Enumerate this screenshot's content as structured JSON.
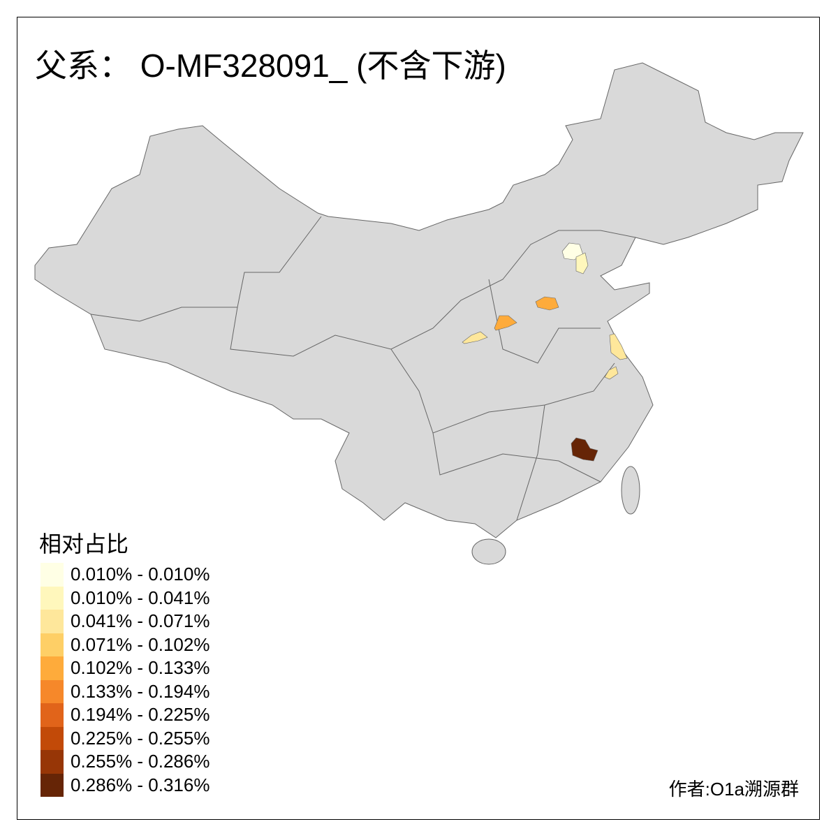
{
  "title": "父系： O-MF328091_ (不含下游)",
  "legend": {
    "title": "相对占比",
    "items": [
      {
        "label": "0.010% - 0.010%",
        "color": "#FFFFE5"
      },
      {
        "label": "0.010% - 0.041%",
        "color": "#FFF7BC"
      },
      {
        "label": "0.041% - 0.071%",
        "color": "#FEE79B"
      },
      {
        "label": "0.071% - 0.102%",
        "color": "#FECF66"
      },
      {
        "label": "0.102% - 0.133%",
        "color": "#FEAB3B"
      },
      {
        "label": "0.133% - 0.194%",
        "color": "#F6882A"
      },
      {
        "label": "0.194% - 0.225%",
        "color": "#E1641A"
      },
      {
        "label": "0.225% - 0.255%",
        "color": "#C24A08"
      },
      {
        "label": "0.255% - 0.286%",
        "color": "#973606"
      },
      {
        "label": "0.286% - 0.316%",
        "color": "#662506"
      }
    ]
  },
  "colors": {
    "base_region": "#D9D9D9",
    "boundary": "#666666"
  },
  "credit": "作者:O1a溯源群"
}
